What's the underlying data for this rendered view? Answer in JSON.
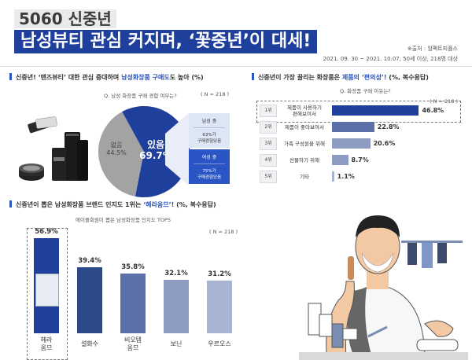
{
  "header": {
    "title_line1": "5060 신중년",
    "title_line2": "남성뷰티 관심 커지며, ‘꽃중년’이 대세!",
    "source": "※출처 : 임팩트피플스",
    "survey_info": "2021. 09. 30 ~ 2021. 10.07, 50세 이상, 218명 대상"
  },
  "section1": {
    "heading_pre": "신중년! ‘맨즈뷰티’ 대한 관심 증대하며 ",
    "heading_hl": "남성화장품 구매도",
    "heading_post": "도 높아 (%)",
    "question": "Q. 남성 화장품 구매 경험 여부는?",
    "n": "( N = 218 )",
    "legend_top": [
      "남성 중",
      "63%가",
      "구매경험있음"
    ],
    "legend_bottom": [
      "여성 중",
      "75%가",
      "구매경험있음"
    ]
  },
  "section2": {
    "heading_pre": "신중년이 가장 끌리는 화장품은 ",
    "heading_hl": "제품의 ‘편의성’!",
    "heading_post": " (%, 복수응답)",
    "question": "Q. 화장품 구매 이유는?",
    "n": "( N = 218 )"
  },
  "section3": {
    "heading_pre": "신중년이 뽑은 남성화장품 브랜드 인지도 1위는 ",
    "heading_hl": "‘헤라옴므’!",
    "heading_post": " (%, 복수응답)",
    "subtitle": "에이플회원이 뽑은 남성화장품 인지도 TOP5",
    "n": "( N = 218 )"
  },
  "colors": {
    "navy": "#1f3f9c",
    "blue": "#2b54c4",
    "mid": "#5b6fa8",
    "light": "#8e9cc4",
    "pale": "#a9b3d4",
    "gray": "#a3a3a3",
    "pale_box": "#dde6f5"
  },
  "chart_data": [
    {
      "type": "pie",
      "title": "",
      "categories": [
        "있음",
        "없음"
      ],
      "values": [
        69.7,
        44.5
      ],
      "labels": [
        "있음\n69.7%",
        "없음\n44.5%"
      ]
    },
    {
      "type": "bar",
      "orientation": "horizontal",
      "title": "Q. 화장품 구매 이유는?",
      "ranks": [
        "1위",
        "2위",
        "3위",
        "4위",
        "5위"
      ],
      "categories": [
        "제품이 사용하기 편해보여서",
        "제품이 좋아보여서",
        "가족 구성원을 위해",
        "선물하기 위해",
        "기타"
      ],
      "values": [
        46.8,
        22.8,
        20.6,
        8.7,
        1.1
      ],
      "value_labels": [
        "46.8%",
        "22.8%",
        "20.6%",
        "8.7%",
        "1.1%"
      ],
      "xlim": [
        0,
        50
      ]
    },
    {
      "type": "bar",
      "orientation": "vertical",
      "title": "에이플회원이 뽑은 남성화장품 인지도 TOP5",
      "categories": [
        "헤라\n옴므",
        "설화수",
        "비오템\n옴므",
        "보닌",
        "우르오스"
      ],
      "values": [
        56.9,
        39.4,
        35.8,
        32.1,
        31.2
      ],
      "value_labels": [
        "56.9%",
        "39.4%",
        "35.8%",
        "32.1%",
        "31.2%"
      ],
      "ylim": [
        0,
        60
      ]
    }
  ]
}
